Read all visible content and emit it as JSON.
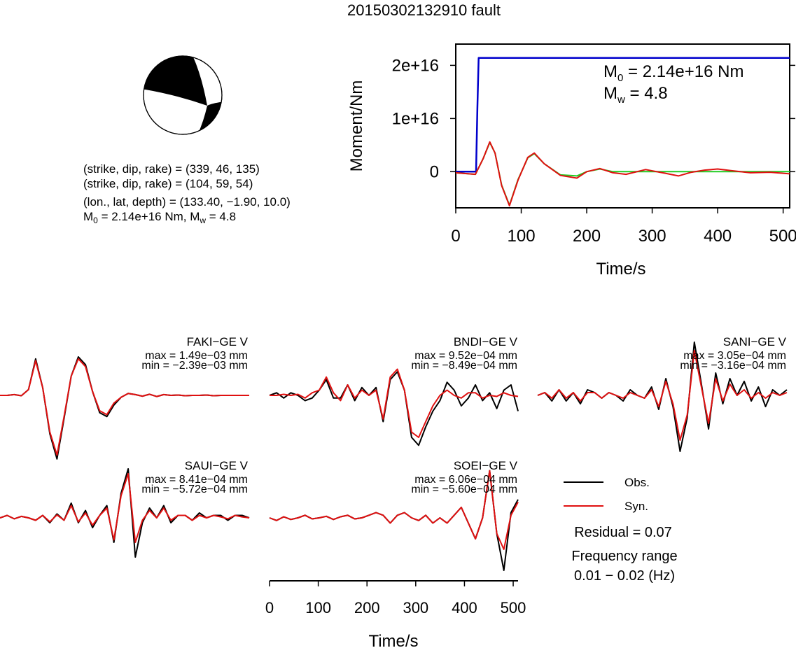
{
  "title": "20150302132910 fault",
  "focal": {
    "line1": "(strike, dip, rake) = (339, 46, 135)",
    "line2": "(strike, dip, rake) = (104, 59, 54)",
    "line3": "(lon., lat, depth) = (133.40, −1.90, 10.0)",
    "m0_label": "M",
    "m0_sub": "0",
    "m0_text": " = 2.14e+16 Nm, M",
    "mw_sub": "w",
    "mw_text": " = 4.8"
  },
  "colors": {
    "obs": "#000000",
    "syn": "#e01010",
    "moment": "#0000cc",
    "stf": "#22cc22"
  },
  "chart_data": [
    {
      "type": "line",
      "xlabel": "Time/s",
      "ylabel": "Moment/Nm",
      "xlim": [
        0,
        510
      ],
      "ylim": [
        -6800000000000000.0,
        2.4e+16
      ],
      "xticks": [
        "0",
        "100",
        "200",
        "300",
        "400",
        "500"
      ],
      "yticks": [
        "0",
        "1e+16",
        "2e+16"
      ],
      "annotation_m0_prefix": "M",
      "annotation_m0_sub": "0",
      "annotation_m0_value": " = 2.14e+16 Nm",
      "annotation_mw_prefix": "M",
      "annotation_mw_sub": "w",
      "annotation_mw_value": " = 4.8",
      "series": [
        {
          "x": [
            0,
            31,
            33,
            35,
            510
          ],
          "y": [
            0,
            0,
            1.2e+16,
            2.14e+16,
            2.14e+16
          ]
        },
        {
          "x": [
            0,
            30,
            42,
            52,
            60,
            70,
            82,
            95,
            110,
            120,
            135,
            160,
            185,
            200,
            220,
            240,
            260,
            290,
            320,
            360,
            400,
            510
          ],
          "y": [
            -200000000000000.0,
            -500000000000000.0,
            2500000000000000.0,
            5500000000000000.0,
            3500000000000000.0,
            -2500000000000000.0,
            -6300000000000000.0,
            -1500000000000000.0,
            2600000000000000.0,
            3400000000000000.0,
            1500000000000000.0,
            -600000000000000.0,
            -800000000000000.0,
            0,
            500000000000000.0,
            0,
            0,
            0,
            0,
            0,
            0,
            0
          ]
        },
        {
          "x": [
            0,
            30,
            42,
            52,
            60,
            70,
            82,
            95,
            110,
            120,
            135,
            160,
            185,
            200,
            220,
            240,
            260,
            290,
            320,
            340,
            360,
            380,
            400,
            420,
            450,
            480,
            510
          ],
          "y": [
            -200000000000000.0,
            -500000000000000.0,
            2500000000000000.0,
            5600000000000000.0,
            3500000000000000.0,
            -2600000000000000.0,
            -6400000000000000.0,
            -1600000000000000.0,
            2700000000000000.0,
            3500000000000000.0,
            1500000000000000.0,
            -700000000000000.0,
            -1200000000000000.0,
            0,
            600000000000000.0,
            -200000000000000.0,
            -500000000000000.0,
            400000000000000.0,
            -300000000000000.0,
            -800000000000000.0,
            -100000000000000.0,
            300000000000000.0,
            500000000000000.0,
            200000000000000.0,
            -200000000000000.0,
            -100000000000000.0,
            -400000000000000.0
          ]
        }
      ]
    },
    {
      "type": "line",
      "xlabel": "Time/s",
      "xlim": [
        0,
        510
      ],
      "xticks": [
        "0",
        "100",
        "200",
        "300",
        "400",
        "500"
      ],
      "traces": [
        {
          "station": "FAKI−GE V",
          "max": "max = 1.49e−03 mm",
          "min": "min = −2.39e−03 mm",
          "obs": [
            0,
            0,
            0.02,
            -0.01,
            0.15,
            0.95,
            0.2,
            -1.0,
            -1.65,
            -0.6,
            0.5,
            1.0,
            0.8,
            0.1,
            -0.45,
            -0.55,
            -0.25,
            -0.05,
            0.05,
            0.02,
            -0.02,
            0.03,
            -0.03,
            0.02,
            0,
            0.01,
            -0.01,
            0,
            0,
            0.01,
            -0.01,
            0,
            0,
            0,
            0,
            0
          ],
          "syn": [
            0,
            0,
            0.02,
            -0.01,
            0.15,
            0.9,
            0.2,
            -0.95,
            -1.55,
            -0.55,
            0.5,
            0.95,
            0.75,
            0.1,
            -0.4,
            -0.5,
            -0.2,
            -0.05,
            0.05,
            0.02,
            -0.02,
            0.03,
            -0.03,
            0.02,
            0,
            0.01,
            -0.01,
            0,
            0,
            0.01,
            -0.01,
            0,
            0,
            0,
            0,
            0
          ]
        },
        {
          "station": "BNDI−GE V",
          "max": "max = 9.52e−04 mm",
          "min": "min = −8.49e−04 mm",
          "obs": [
            0,
            0.05,
            -0.05,
            0.05,
            0,
            -0.1,
            -0.05,
            0.1,
            0.3,
            -0.05,
            -0.05,
            0.2,
            -0.1,
            0.15,
            0.0,
            0.15,
            -0.5,
            0.3,
            0.45,
            0.1,
            -0.8,
            -0.95,
            -0.6,
            -0.3,
            -0.1,
            0.25,
            0.1,
            -0.2,
            -0.05,
            0.2,
            -0.1,
            0.05,
            -0.25,
            0.1,
            0.2,
            -0.3
          ],
          "syn": [
            0,
            0.0,
            0.02,
            0.0,
            0.02,
            -0.05,
            0.05,
            0.1,
            0.35,
            0.05,
            -0.1,
            0.2,
            -0.05,
            0.1,
            0.0,
            0.1,
            -0.45,
            0.35,
            0.5,
            0.1,
            -0.7,
            -0.8,
            -0.5,
            -0.2,
            0.0,
            0.1,
            0.0,
            -0.05,
            0.05,
            0.05,
            -0.05,
            0.0,
            -0.02,
            0.05,
            0.0,
            -0.02
          ]
        },
        {
          "station": "SANI−GE V",
          "max": "max = 3.05e−04 mm",
          "min": "min = −3.16e−04 mm",
          "obs": [
            0,
            0.05,
            -0.1,
            0.1,
            -0.1,
            0.05,
            -0.15,
            0.1,
            0.05,
            -0.05,
            0.05,
            0.0,
            -0.1,
            0.1,
            0.0,
            -0.05,
            0.15,
            -0.25,
            0.3,
            -0.2,
            -1.0,
            -0.4,
            0.95,
            0.2,
            -0.6,
            0.4,
            -0.15,
            0.3,
            0.0,
            0.25,
            -0.1,
            0.15,
            -0.2,
            0.1,
            0.0,
            0.1
          ],
          "syn": [
            0,
            0.05,
            -0.05,
            0.1,
            -0.05,
            0.05,
            -0.1,
            0.05,
            0.05,
            -0.05,
            0.05,
            0.0,
            -0.05,
            0.05,
            0.0,
            -0.05,
            0.1,
            -0.2,
            0.25,
            -0.15,
            -0.8,
            -0.35,
            0.8,
            0.15,
            -0.5,
            0.3,
            -0.1,
            0.2,
            0.0,
            0.1,
            -0.05,
            0.05,
            -0.05,
            0.05,
            0.0,
            0.05
          ]
        },
        {
          "station": "SAUI−GE V",
          "max": "max = 8.41e−04 mm",
          "min": "min = −5.72e−04 mm",
          "obs": [
            0,
            0.05,
            -0.02,
            0.03,
            0.0,
            -0.05,
            0.05,
            -0.1,
            0.08,
            -0.05,
            0.3,
            -0.1,
            0.15,
            -0.2,
            0.05,
            0.25,
            -0.5,
            0.5,
            1.0,
            -0.8,
            -0.1,
            0.2,
            0.0,
            0.25,
            -0.1,
            0.05,
            0.05,
            -0.05,
            0.1,
            0.0,
            0.05,
            0.05,
            -0.05,
            0.05,
            0.05,
            0.0
          ],
          "syn": [
            0,
            0.05,
            -0.02,
            0.03,
            0.0,
            -0.05,
            0.05,
            -0.08,
            0.06,
            -0.05,
            0.25,
            -0.08,
            0.1,
            -0.15,
            0.05,
            0.2,
            -0.45,
            0.45,
            0.9,
            -0.5,
            -0.05,
            0.15,
            0.0,
            0.2,
            -0.05,
            0.05,
            0.05,
            -0.05,
            0.05,
            0.0,
            0.05,
            0.02,
            -0.02,
            0.05,
            0.02,
            0.0
          ]
        },
        {
          "station": "SOEI−GE V",
          "max": "max = 6.06e−04 mm",
          "min": "min = −5.60e−04 mm",
          "obs": [
            0,
            -0.05,
            0.02,
            -0.03,
            0.0,
            0.05,
            -0.02,
            0.0,
            0.03,
            -0.03,
            0.02,
            0.05,
            -0.02,
            0.0,
            0.05,
            0.1,
            0.05,
            -0.1,
            0.05,
            0.1,
            0.0,
            -0.05,
            0.05,
            -0.1,
            0.0,
            -0.1,
            0.05,
            0.2,
            -0.1,
            -0.4,
            0.0,
            0.9,
            -0.3,
            -1.0,
            0.1,
            0.35
          ],
          "syn": [
            0,
            -0.05,
            0.02,
            -0.03,
            0.0,
            0.05,
            -0.02,
            0.0,
            0.03,
            -0.03,
            0.02,
            0.05,
            -0.02,
            0.0,
            0.05,
            0.1,
            0.05,
            -0.1,
            0.05,
            0.1,
            0.0,
            -0.05,
            0.05,
            -0.1,
            0.0,
            -0.1,
            0.05,
            0.2,
            -0.1,
            -0.4,
            0.0,
            0.9,
            -0.3,
            -0.6,
            0.05,
            0.3
          ]
        }
      ]
    }
  ],
  "legend": {
    "obs_label": "Obs.",
    "syn_label": "Syn.",
    "residual": "Residual = 0.07",
    "freq_title": "Frequency range",
    "freq_value": "0.01 − 0.02 (Hz)"
  }
}
